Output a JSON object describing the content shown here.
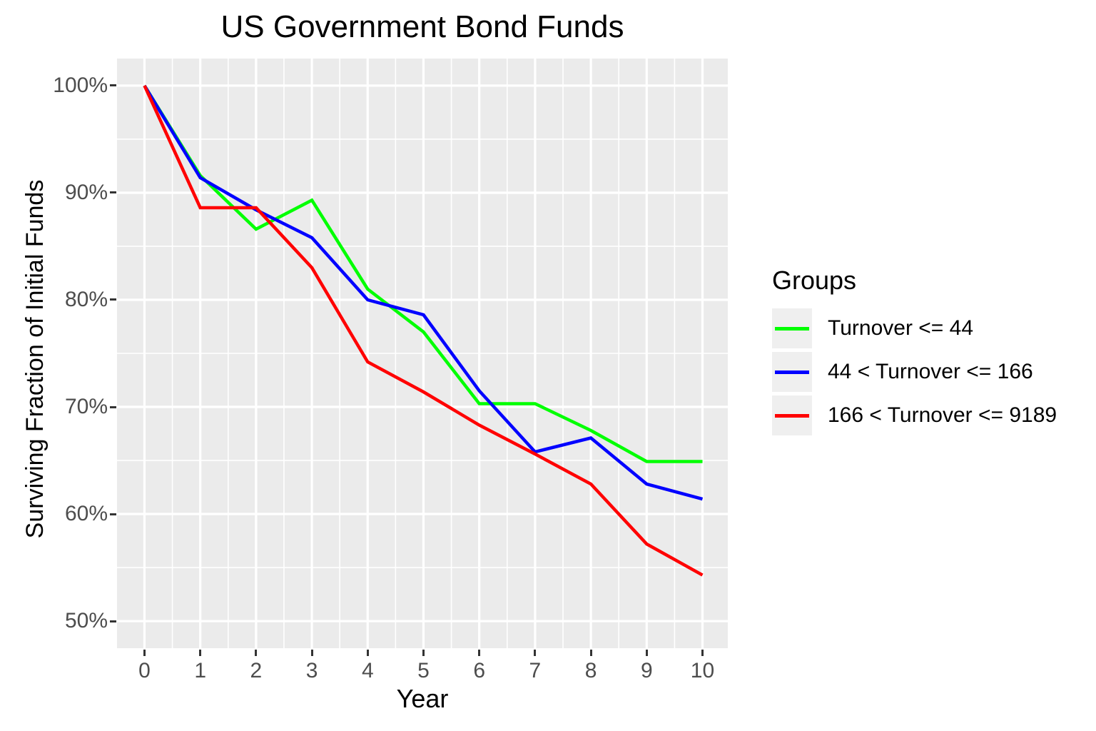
{
  "title": "US Government Bond Funds",
  "axes": {
    "x": {
      "label": "Year",
      "lim": [
        -0.492,
        10.454
      ],
      "ticks": [
        {
          "v": 0,
          "label": "0"
        },
        {
          "v": 1,
          "label": "1"
        },
        {
          "v": 2,
          "label": "2"
        },
        {
          "v": 3,
          "label": "3"
        },
        {
          "v": 4,
          "label": "4"
        },
        {
          "v": 5,
          "label": "5"
        },
        {
          "v": 6,
          "label": "6"
        },
        {
          "v": 7,
          "label": "7"
        },
        {
          "v": 8,
          "label": "8"
        },
        {
          "v": 9,
          "label": "9"
        },
        {
          "v": 10,
          "label": "10"
        }
      ],
      "minor": [
        0.5,
        1.5,
        2.5,
        3.5,
        4.5,
        5.5,
        6.5,
        7.5,
        8.5,
        9.5
      ]
    },
    "y": {
      "label": "Surviving Fraction of Initial Funds",
      "lim": [
        47.47,
        102.53
      ],
      "ticks": [
        {
          "v": 100,
          "label": "100%"
        },
        {
          "v": 90,
          "label": "90%"
        },
        {
          "v": 80,
          "label": "80%"
        },
        {
          "v": 70,
          "label": "70%"
        },
        {
          "v": 60,
          "label": "60%"
        },
        {
          "v": 50,
          "label": "50%"
        }
      ],
      "minor": [
        55,
        65,
        75,
        85,
        95
      ]
    }
  },
  "legend": {
    "title": "Groups",
    "items": [
      {
        "label": "Turnover <= 44",
        "color": "#00FF00"
      },
      {
        "label": "44 < Turnover <= 166",
        "color": "#0000FF"
      },
      {
        "label": "166 < Turnover <= 9189",
        "color": "#FF0000"
      }
    ]
  },
  "colors": {
    "panel_background": "#EBEBEB",
    "grid": "#FFFFFF",
    "tick_text": "#4D4D4D",
    "tick_mark": "#333333",
    "title_text": "#000000",
    "legend_key_background": "#EFEFEF"
  },
  "chart_data": {
    "type": "line",
    "title": "US Government Bond Funds",
    "xlabel": "Year",
    "ylabel": "Surviving Fraction of Initial Funds",
    "x": [
      0,
      1,
      2,
      3,
      4,
      5,
      6,
      7,
      8,
      9,
      10
    ],
    "series": [
      {
        "name": "Turnover <= 44",
        "color": "#00FF00",
        "values": [
          100,
          91.6,
          86.6,
          89.3,
          81.0,
          77.0,
          70.3,
          70.3,
          67.8,
          64.9,
          64.9
        ]
      },
      {
        "name": "44 < Turnover <= 166",
        "color": "#0000FF",
        "values": [
          100,
          91.4,
          88.4,
          85.8,
          80.0,
          78.6,
          71.5,
          65.8,
          67.1,
          62.8,
          61.4
        ]
      },
      {
        "name": "166 < Turnover <= 9189",
        "color": "#FF0000",
        "values": [
          100,
          88.6,
          88.6,
          83.0,
          74.2,
          71.4,
          68.3,
          65.6,
          62.8,
          57.2,
          54.3
        ]
      }
    ],
    "xlim": [
      0,
      10
    ],
    "ylim": [
      50,
      100
    ],
    "y_unit": "percent",
    "grid": true,
    "legend_position": "right",
    "line_width": 4.5
  }
}
